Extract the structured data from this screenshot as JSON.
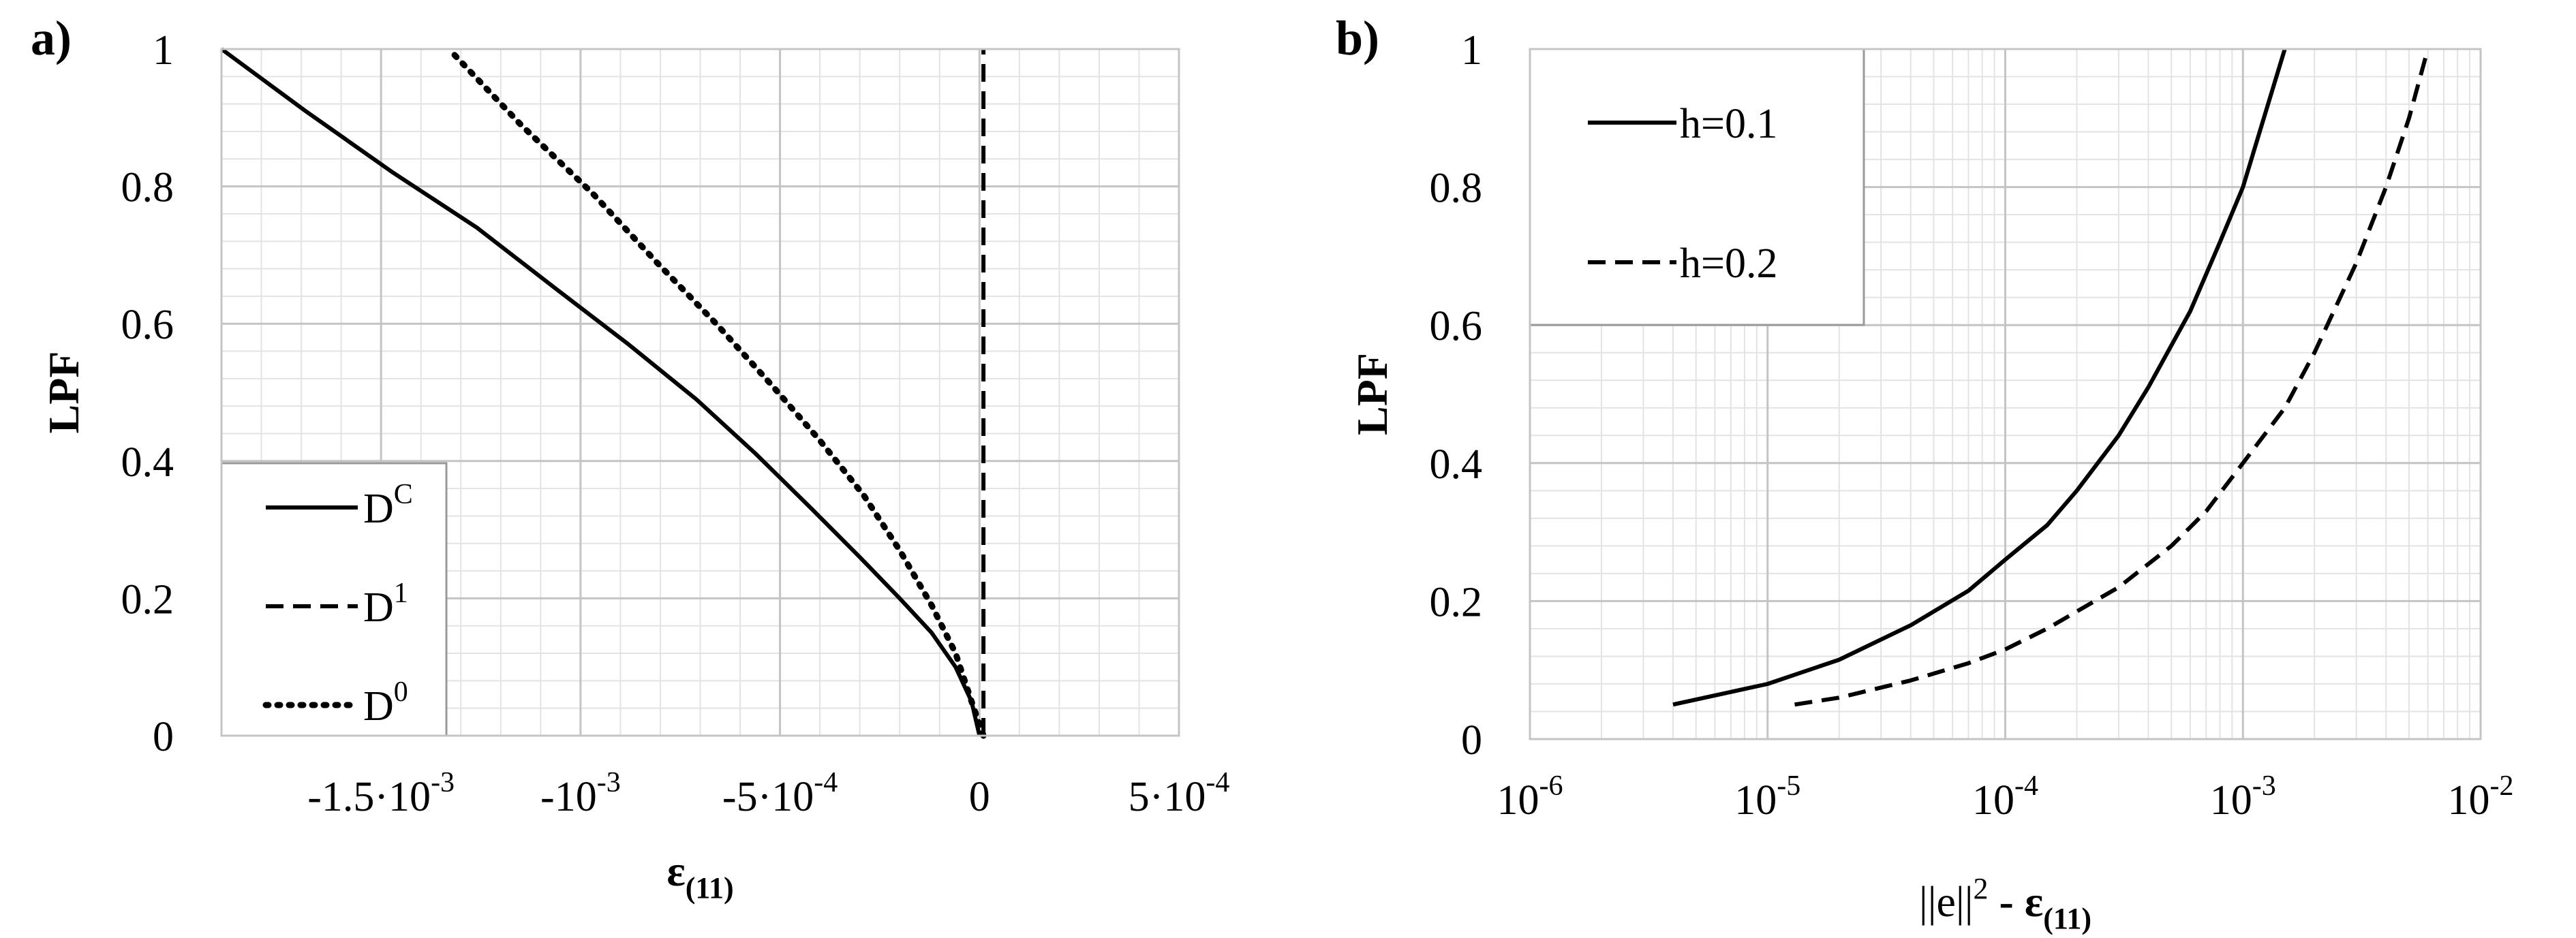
{
  "chart_data": [
    {
      "panel_label": "a)",
      "type": "line",
      "xlabel": {
        "base": "ε",
        "sub": "(11)"
      },
      "ylabel": "LPF",
      "xlim": [
        -0.0019,
        0.0005
      ],
      "ylim": [
        0,
        1
      ],
      "x_ticks": [
        {
          "value": -0.0015,
          "base": "-1.5·10",
          "exp": "-3"
        },
        {
          "value": -0.001,
          "base": "-10",
          "exp": "-3"
        },
        {
          "value": -0.0005,
          "base": "-5·10",
          "exp": "-4"
        },
        {
          "value": 0,
          "base": "0",
          "exp": ""
        },
        {
          "value": 0.0005,
          "base": "5·10",
          "exp": "-4"
        }
      ],
      "y_ticks": [
        {
          "value": 0,
          "label": "0"
        },
        {
          "value": 0.2,
          "label": "0.2"
        },
        {
          "value": 0.4,
          "label": "0.4"
        },
        {
          "value": 0.6,
          "label": "0.6"
        },
        {
          "value": 0.8,
          "label": "0.8"
        },
        {
          "value": 1,
          "label": "1"
        }
      ],
      "grid": true,
      "legend_position": "bottom-left",
      "series": [
        {
          "name": "D",
          "name_sup": "C",
          "style": "solid",
          "x": [
            0,
            -2e-05,
            -6e-05,
            -0.00012,
            -0.0002,
            -0.0003,
            -0.00042,
            -0.00056,
            -0.00071,
            -0.00088,
            -0.00106,
            -0.00126,
            -0.00147,
            -0.00169,
            -0.0019
          ],
          "y": [
            0,
            0.05,
            0.1,
            0.15,
            0.2,
            0.26,
            0.33,
            0.41,
            0.49,
            0.57,
            0.65,
            0.74,
            0.82,
            0.91,
            1.0
          ]
        },
        {
          "name": "D",
          "name_sup": "1",
          "style": "dashed",
          "x": [
            1e-05,
            1e-05
          ],
          "y": [
            0,
            1
          ]
        },
        {
          "name": "D",
          "name_sup": "0",
          "style": "dotted",
          "x": [
            1e-05,
            -2e-05,
            -6e-05,
            -0.00012,
            -0.0002,
            -0.00029,
            -0.0004,
            -0.00052,
            -0.00066,
            -0.00081,
            -0.00097,
            -0.00115,
            -0.00133
          ],
          "y": [
            0,
            0.05,
            0.12,
            0.19,
            0.27,
            0.35,
            0.43,
            0.51,
            0.6,
            0.69,
            0.79,
            0.89,
            1.0
          ]
        }
      ]
    },
    {
      "panel_label": "b)",
      "type": "line",
      "xlabel": {
        "pre": "||e||",
        "sup": "2",
        "mid": " - ε",
        "sub": "(11)"
      },
      "ylabel": "LPF",
      "x_scale": "log",
      "xlim": [
        1e-06,
        0.01
      ],
      "ylim": [
        0,
        1
      ],
      "x_ticks": [
        {
          "value": 1e-06,
          "base": "10",
          "exp": "-6"
        },
        {
          "value": 1e-05,
          "base": "10",
          "exp": "-5"
        },
        {
          "value": 0.0001,
          "base": "10",
          "exp": "-4"
        },
        {
          "value": 0.001,
          "base": "10",
          "exp": "-3"
        },
        {
          "value": 0.01,
          "base": "10",
          "exp": "-2"
        }
      ],
      "y_ticks": [
        {
          "value": 0,
          "label": "0"
        },
        {
          "value": 0.2,
          "label": "0.2"
        },
        {
          "value": 0.4,
          "label": "0.4"
        },
        {
          "value": 0.6,
          "label": "0.6"
        },
        {
          "value": 0.8,
          "label": "0.8"
        },
        {
          "value": 1,
          "label": "1"
        }
      ],
      "grid": true,
      "legend_position": "top-left",
      "series": [
        {
          "name": "h=0.1",
          "style": "solid",
          "x": [
            4e-06,
            1e-05,
            2e-05,
            4e-05,
            7e-05,
            0.0001,
            0.00015,
            0.0002,
            0.0003,
            0.0004,
            0.0006,
            0.0008,
            0.001,
            0.0012,
            0.0015
          ],
          "y": [
            0.05,
            0.08,
            0.115,
            0.165,
            0.215,
            0.26,
            0.31,
            0.36,
            0.44,
            0.51,
            0.62,
            0.72,
            0.8,
            0.89,
            1.0
          ]
        },
        {
          "name": "h=0.2",
          "style": "dashed",
          "x": [
            1.3e-05,
            2e-05,
            4e-05,
            7e-05,
            0.0001,
            0.00015,
            0.0002,
            0.0003,
            0.0005,
            0.0007,
            0.001,
            0.0015,
            0.002,
            0.003,
            0.004,
            0.005,
            0.006
          ],
          "y": [
            0.05,
            0.06,
            0.085,
            0.11,
            0.13,
            0.16,
            0.185,
            0.22,
            0.28,
            0.33,
            0.4,
            0.48,
            0.56,
            0.69,
            0.8,
            0.9,
            1.0
          ]
        }
      ]
    }
  ]
}
